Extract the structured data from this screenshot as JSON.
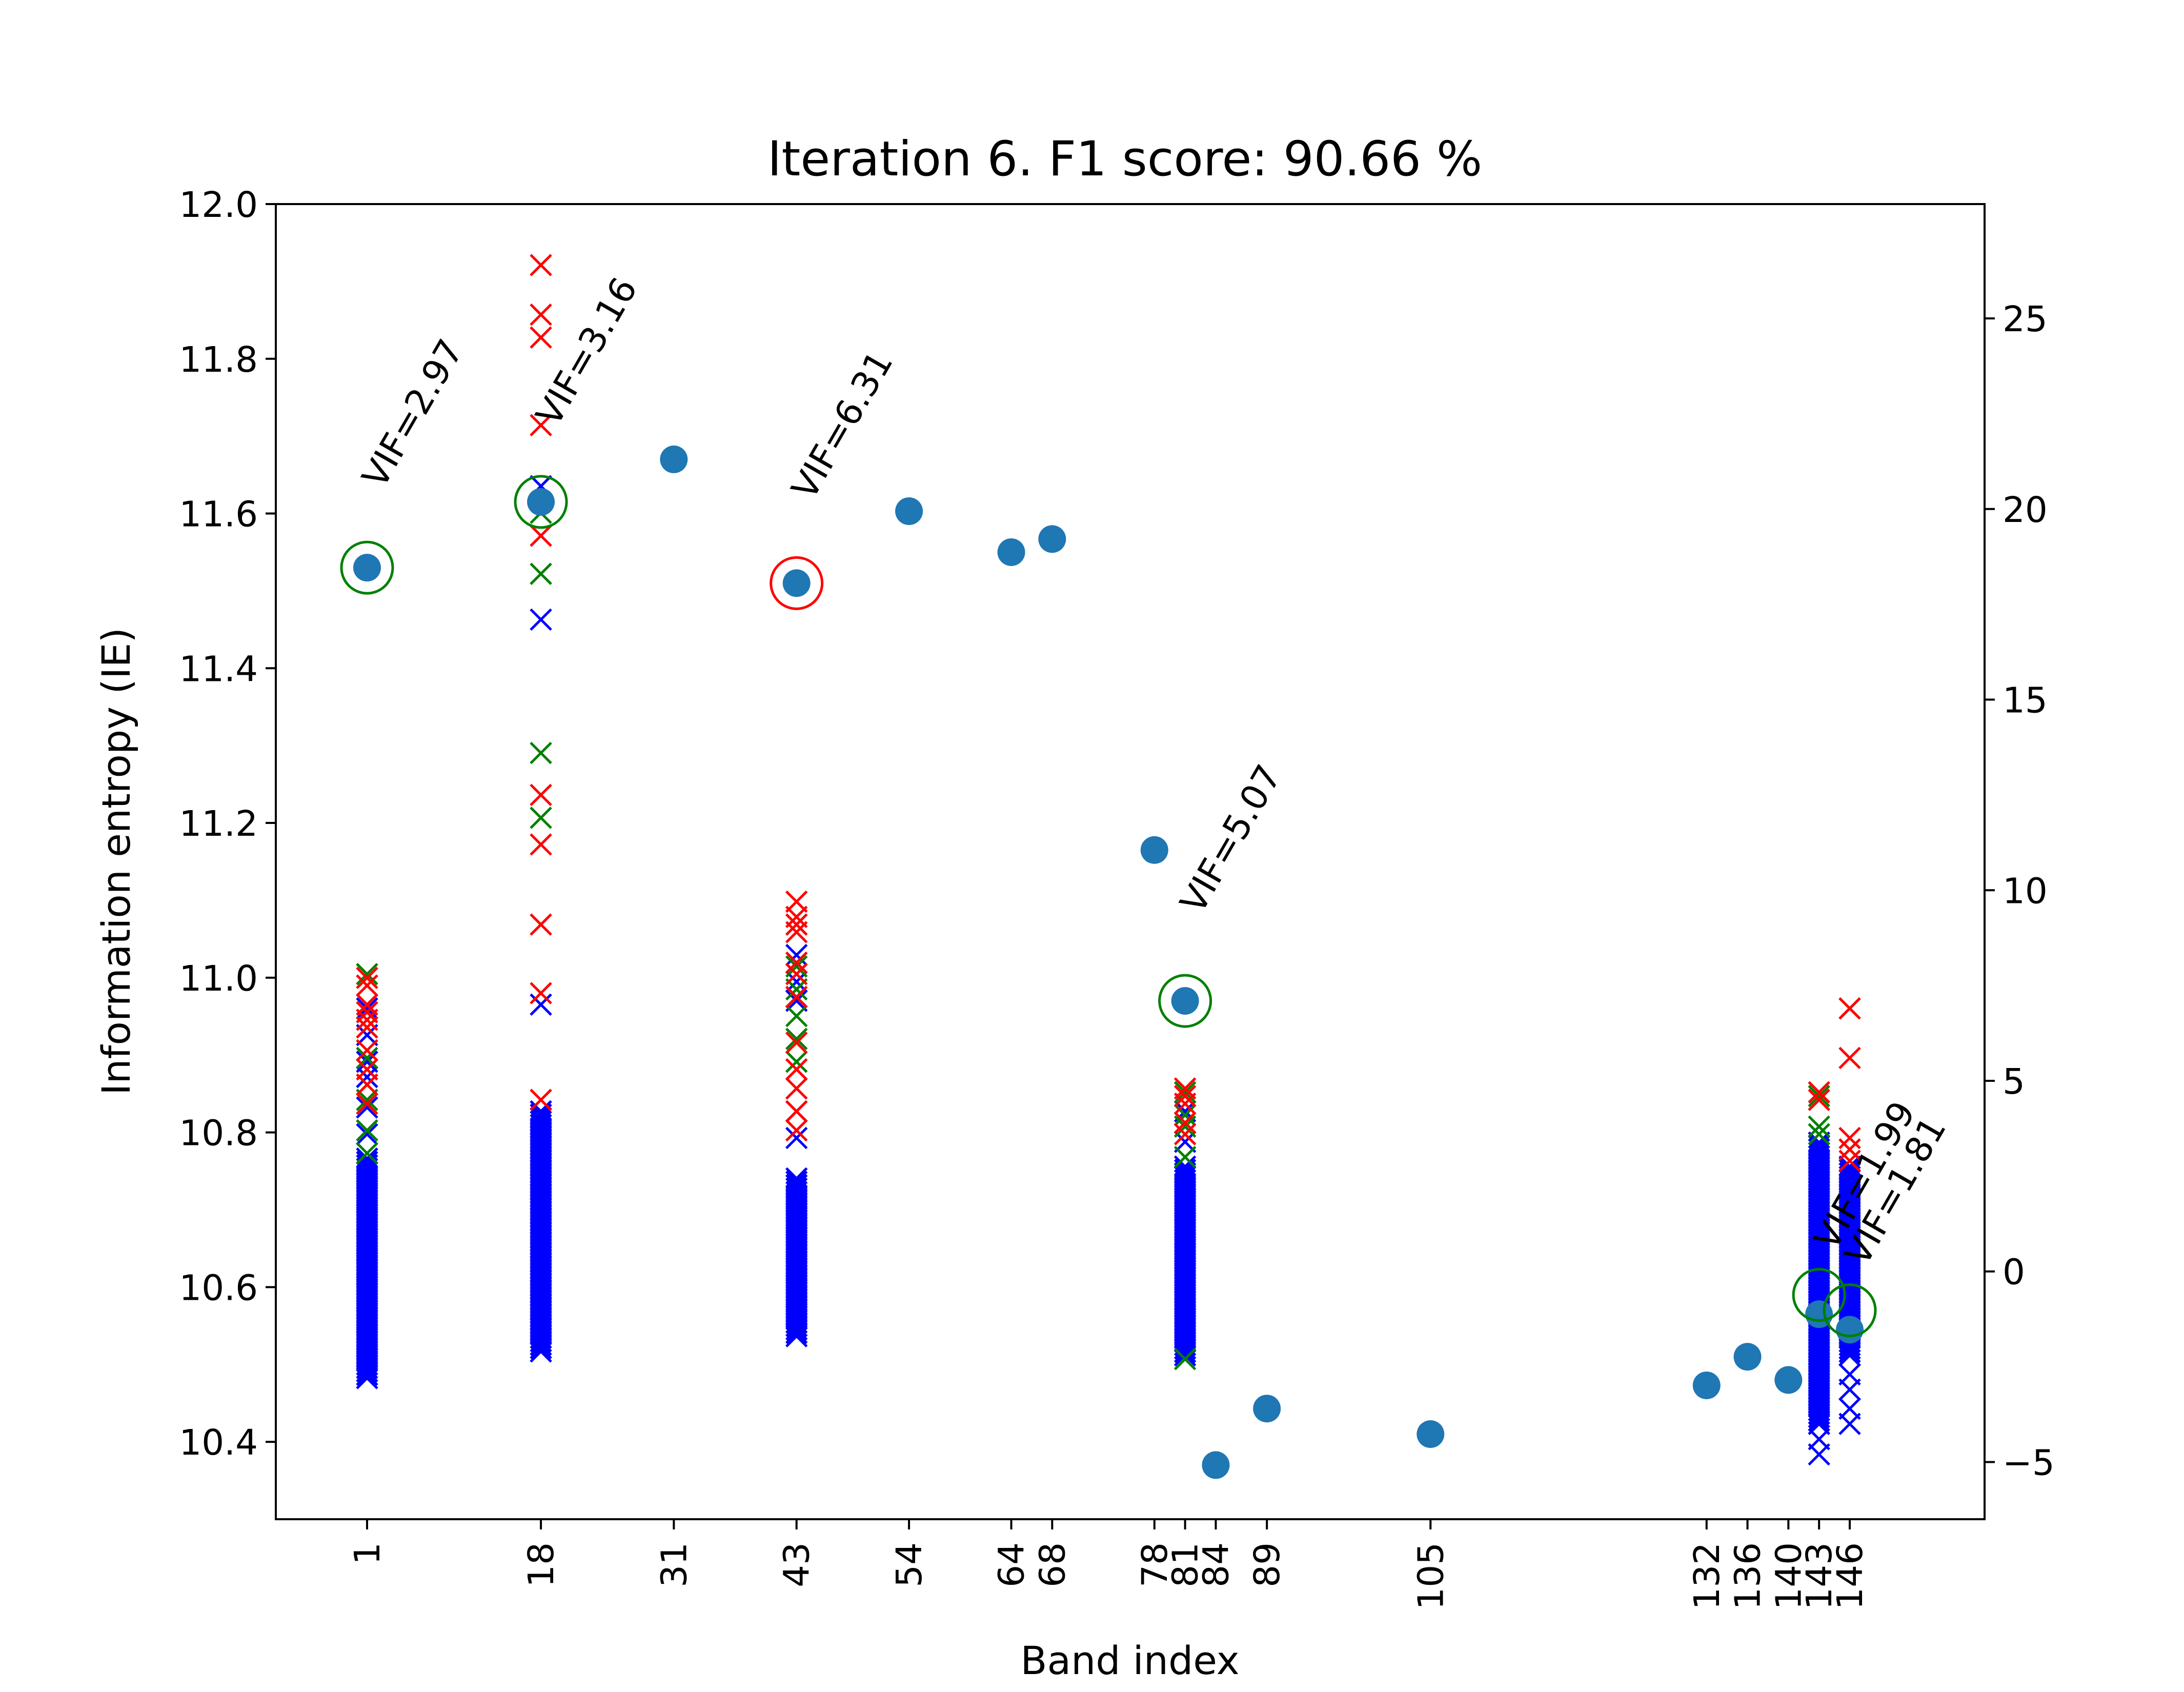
{
  "chart_data": {
    "type": "scatter",
    "title": "Iteration 6. F1 score: 90.66 %",
    "xlabel": "Band index",
    "ylabel": "Information entropy (IE)",
    "ylim": [
      10.3,
      12.0
    ],
    "y2lim": [
      -6.5,
      28
    ],
    "y_ticks": [
      "10.4",
      "10.6",
      "10.8",
      "11.0",
      "11.2",
      "11.4",
      "11.6",
      "11.8",
      "12.0"
    ],
    "y2_ticks": [
      "−5",
      "0",
      "5",
      "10",
      "15",
      "20",
      "25"
    ],
    "x_ticks": [
      1,
      18,
      31,
      43,
      54,
      64,
      68,
      78,
      81,
      84,
      89,
      105,
      132,
      136,
      140,
      143,
      146
    ],
    "grid": false,
    "colors": {
      "ie_points": "#1f77b4",
      "red": "#ff0000",
      "green": "#008000",
      "blue": "#0000ff"
    },
    "ie_points": [
      {
        "band": 1,
        "ie": 11.53
      },
      {
        "band": 18,
        "ie": 11.615
      },
      {
        "band": 31,
        "ie": 11.67
      },
      {
        "band": 43,
        "ie": 11.51
      },
      {
        "band": 54,
        "ie": 11.603
      },
      {
        "band": 64,
        "ie": 11.55
      },
      {
        "band": 68,
        "ie": 11.567
      },
      {
        "band": 78,
        "ie": 11.165
      },
      {
        "band": 81,
        "ie": 10.97
      },
      {
        "band": 84,
        "ie": 10.37
      },
      {
        "band": 89,
        "ie": 10.443
      },
      {
        "band": 105,
        "ie": 10.41
      },
      {
        "band": 132,
        "ie": 10.473
      },
      {
        "band": 136,
        "ie": 10.51
      },
      {
        "band": 140,
        "ie": 10.48
      },
      {
        "band": 143,
        "ie": 10.565
      },
      {
        "band": 146,
        "ie": 10.545
      }
    ],
    "selected_circles": [
      {
        "band": 1,
        "ie": 11.53,
        "color": "green"
      },
      {
        "band": 18,
        "ie": 11.615,
        "color": "green"
      },
      {
        "band": 43,
        "ie": 11.51,
        "color": "red"
      },
      {
        "band": 81,
        "ie": 10.97,
        "color": "green"
      },
      {
        "band": 143,
        "ie": 10.59,
        "color": "green"
      },
      {
        "band": 146,
        "ie": 10.57,
        "color": "green"
      }
    ],
    "vif_labels": [
      {
        "band": 1,
        "ie": 11.63,
        "text": "VIF=2.97"
      },
      {
        "band": 18,
        "ie": 11.71,
        "text": "VIF=3.16"
      },
      {
        "band": 43,
        "ie": 11.615,
        "text": "VIF=6.31"
      },
      {
        "band": 81,
        "ie": 11.08,
        "text": "VIF=5.07"
      },
      {
        "band": 143,
        "ie": 10.645,
        "text": "VIF=1.99"
      },
      {
        "band": 146,
        "ie": 10.625,
        "text": "VIF=1.81"
      }
    ],
    "vif_scatter": [
      {
        "band": 1,
        "color": "blue",
        "dense": [
          -2.8,
          3.0
        ],
        "values": [
          6.9,
          6.2,
          5.5,
          5.1,
          4.3,
          3.6
        ]
      },
      {
        "band": 1,
        "color": "green",
        "values": [
          7.8,
          6.4,
          5.6,
          4.5,
          3.7,
          3.1
        ]
      },
      {
        "band": 1,
        "color": "red",
        "values": [
          7.7,
          7.5,
          7.0,
          6.8,
          6.6,
          6.4,
          5.8,
          5.3,
          4.9,
          4.4
        ]
      },
      {
        "band": 18,
        "color": "blue",
        "dense": [
          -2.1,
          4.2
        ],
        "values": [
          20.6,
          17.1,
          7.0
        ]
      },
      {
        "band": 18,
        "color": "red",
        "values": [
          26.4,
          25.1,
          24.5,
          22.2,
          19.3,
          12.5,
          11.2,
          9.1,
          7.3,
          4.5
        ]
      },
      {
        "band": 18,
        "color": "green",
        "values": [
          19.9,
          18.3,
          13.6,
          11.9
        ]
      },
      {
        "band": 43,
        "color": "blue",
        "dense": [
          -1.7,
          2.5
        ],
        "values": [
          8.3,
          7.6,
          7.1,
          4.2,
          3.5
        ]
      },
      {
        "band": 43,
        "color": "red",
        "values": [
          9.7,
          9.3,
          9.1,
          8.9,
          8.1,
          7.8,
          7.2,
          6.0,
          5.3,
          4.8,
          4.2,
          3.7
        ]
      },
      {
        "band": 43,
        "color": "green",
        "values": [
          8.0,
          7.4,
          6.7,
          6.1,
          5.5
        ]
      },
      {
        "band": 81,
        "color": "blue",
        "dense": [
          -2.2,
          2.8
        ],
        "values": [
          4.2,
          3.4
        ]
      },
      {
        "band": 81,
        "color": "red",
        "values": [
          4.8,
          4.6,
          4.4,
          3.9,
          3.6
        ]
      },
      {
        "band": 81,
        "color": "green",
        "values": [
          4.7,
          4.1,
          3.8,
          -2.3,
          3.0
        ]
      },
      {
        "band": 143,
        "color": "blue",
        "dense": [
          -4.0,
          3.4
        ],
        "values": [
          -4.8,
          -4.4,
          -4.0
        ]
      },
      {
        "band": 143,
        "color": "red",
        "values": [
          4.7,
          4.5
        ]
      },
      {
        "band": 143,
        "color": "green",
        "values": [
          4.6,
          3.8,
          3.6
        ]
      },
      {
        "band": 146,
        "color": "blue",
        "dense": [
          -2.2,
          2.8
        ],
        "values": [
          -4.0,
          -3.6,
          -3.1,
          -2.7
        ]
      },
      {
        "band": 146,
        "color": "red",
        "values": [
          6.9,
          5.6,
          3.5,
          3.2,
          2.9
        ]
      },
      {
        "band": 146,
        "color": "green",
        "values": [
          6.9
        ]
      }
    ]
  }
}
